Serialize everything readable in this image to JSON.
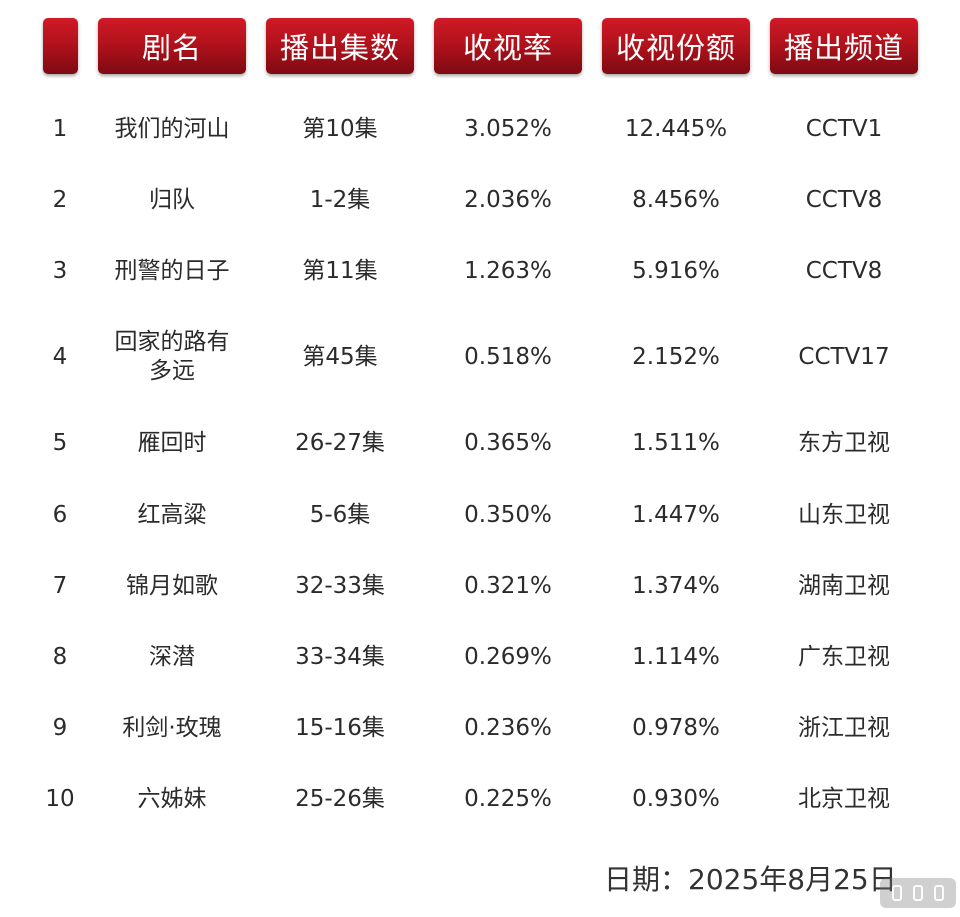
{
  "table": {
    "headers": [
      "",
      "剧名",
      "播出集数",
      "收视率",
      "收视份额",
      "播出频道"
    ],
    "rows": [
      {
        "rank": "1",
        "title": "我们的河山",
        "episodes": "第10集",
        "rating": "3.052%",
        "share": "12.445%",
        "channel": "CCTV1"
      },
      {
        "rank": "2",
        "title": "归队",
        "episodes": "1-2集",
        "rating": "2.036%",
        "share": "8.456%",
        "channel": "CCTV8"
      },
      {
        "rank": "3",
        "title": "刑警的日子",
        "episodes": "第11集",
        "rating": "1.263%",
        "share": "5.916%",
        "channel": "CCTV8"
      },
      {
        "rank": "4",
        "title": "回家的路有多远",
        "title_line1": "回家的路有",
        "title_line2": "多远",
        "episodes": "第45集",
        "rating": "0.518%",
        "share": "2.152%",
        "channel": "CCTV17"
      },
      {
        "rank": "5",
        "title": "雁回时",
        "episodes": "26-27集",
        "rating": "0.365%",
        "share": "1.511%",
        "channel": "东方卫视"
      },
      {
        "rank": "6",
        "title": "红高粱",
        "episodes": "5-6集",
        "rating": "0.350%",
        "share": "1.447%",
        "channel": "山东卫视"
      },
      {
        "rank": "7",
        "title": "锦月如歌",
        "episodes": "32-33集",
        "rating": "0.321%",
        "share": "1.374%",
        "channel": "湖南卫视"
      },
      {
        "rank": "8",
        "title": "深潜",
        "episodes": "33-34集",
        "rating": "0.269%",
        "share": "1.114%",
        "channel": "广东卫视"
      },
      {
        "rank": "9",
        "title": "利剑·玫瑰",
        "episodes": "15-16集",
        "rating": "0.236%",
        "share": "0.978%",
        "channel": "浙江卫视"
      },
      {
        "rank": "10",
        "title": "六姊妹",
        "episodes": "25-26集",
        "rating": "0.225%",
        "share": "0.930%",
        "channel": "北京卫视"
      }
    ]
  },
  "footer": {
    "date_text": "日期：2025年8月25日"
  },
  "colors": {
    "header_red": "#b3121c",
    "header_dark": "#7e0a12",
    "text": "#2b2b2b"
  },
  "icons": {
    "watermark": "weibo-watermark-icon"
  }
}
